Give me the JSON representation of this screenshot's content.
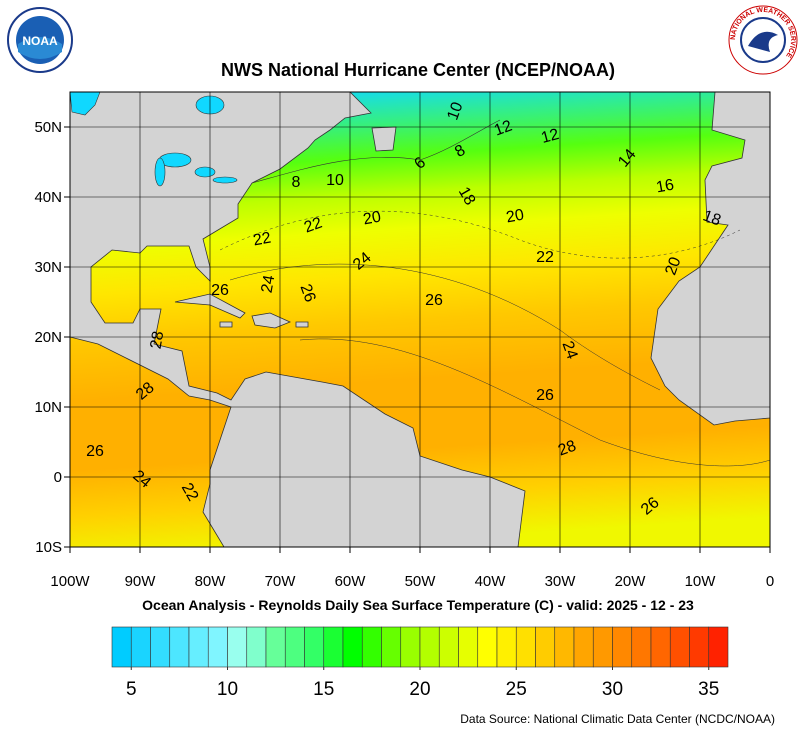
{
  "chart_data": {
    "type": "map",
    "title": "NWS National Hurricane Center (NCEP/NOAA)",
    "subtitle": "Ocean Analysis - Reynolds Daily Sea Surface Temperature (C) - valid: 2025 - 12 - 23",
    "source": "Data Source: National Climatic Data Center (NCDC/NOAA)",
    "noaa_logo": "NOAA",
    "nws_logo": "NATIONAL WEATHER SERVICE",
    "xlim": [
      -100,
      0
    ],
    "ylim": [
      -10,
      55
    ],
    "xticks": [
      {
        "value": -100,
        "label": "100W"
      },
      {
        "value": -90,
        "label": "90W"
      },
      {
        "value": -80,
        "label": "80W"
      },
      {
        "value": -70,
        "label": "70W"
      },
      {
        "value": -60,
        "label": "60W"
      },
      {
        "value": -50,
        "label": "50W"
      },
      {
        "value": -40,
        "label": "40W"
      },
      {
        "value": -30,
        "label": "30W"
      },
      {
        "value": -20,
        "label": "20W"
      },
      {
        "value": -10,
        "label": "10W"
      },
      0
    ],
    "yticks": [
      {
        "value": -10,
        "label": "10S"
      },
      0,
      {
        "value": 10,
        "label": "10N"
      },
      {
        "value": 20,
        "label": "20N"
      },
      {
        "value": 30,
        "label": "30N"
      },
      {
        "value": 40,
        "label": "40N"
      },
      {
        "value": 50,
        "label": "50N"
      }
    ],
    "grid": true,
    "contour_labels": [
      10,
      12,
      12,
      14,
      16,
      18,
      20,
      6,
      8,
      8,
      10,
      18,
      20,
      20,
      22,
      22,
      22,
      24,
      24,
      26,
      26,
      26,
      24,
      26,
      28,
      28,
      26,
      24,
      22,
      26,
      28
    ],
    "colorbar": {
      "clim": [
        4,
        36
      ],
      "ticks": [
        5,
        10,
        15,
        20,
        25,
        30,
        35
      ],
      "colors": [
        "#00ccff",
        "#1ad4ff",
        "#33ddff",
        "#4de6ff",
        "#66eeff",
        "#80f5ff",
        "#99ffee",
        "#80ffcc",
        "#66ff99",
        "#4dff80",
        "#33ff66",
        "#1aff33",
        "#00ff00",
        "#33ff00",
        "#66ff00",
        "#99ff00",
        "#b3ff00",
        "#ccff00",
        "#e6ff00",
        "#ffff00",
        "#fff000",
        "#ffe000",
        "#ffcc00",
        "#ffb800",
        "#ffa500",
        "#ff9900",
        "#ff8800",
        "#ff7700",
        "#ff6600",
        "#ff5000",
        "#ff3a00",
        "#ff2200"
      ]
    }
  }
}
